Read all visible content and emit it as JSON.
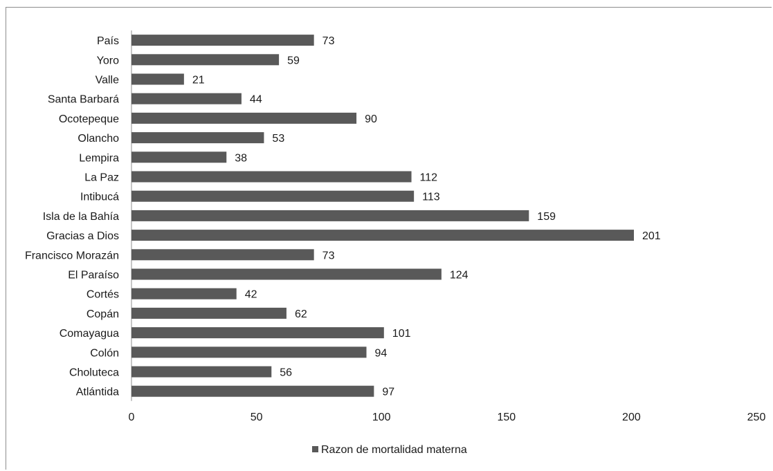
{
  "chart_data": {
    "type": "bar",
    "orientation": "horizontal",
    "categories": [
      "País",
      "Yoro",
      "Valle",
      "Santa Barbará",
      "Ocotepeque",
      "Olancho",
      "Lempira",
      "La Paz",
      "Intibucá",
      "Isla de la Bahía",
      "Gracias a Dios",
      "Francisco Morazán",
      "El Paraíso",
      "Cortés",
      "Copán",
      "Comayagua",
      "Colón",
      "Choluteca",
      "Atlántida"
    ],
    "series": [
      {
        "name": "Razon de mortalidad materna",
        "values": [
          73,
          59,
          21,
          44,
          90,
          53,
          38,
          112,
          113,
          159,
          201,
          73,
          124,
          42,
          62,
          101,
          94,
          56,
          97
        ],
        "color": "#595959"
      }
    ],
    "xlim": [
      0,
      250
    ],
    "xticks": [
      0,
      50,
      100,
      150,
      200,
      250
    ],
    "data_labels": true,
    "grid": false,
    "legend_position": "bottom"
  }
}
